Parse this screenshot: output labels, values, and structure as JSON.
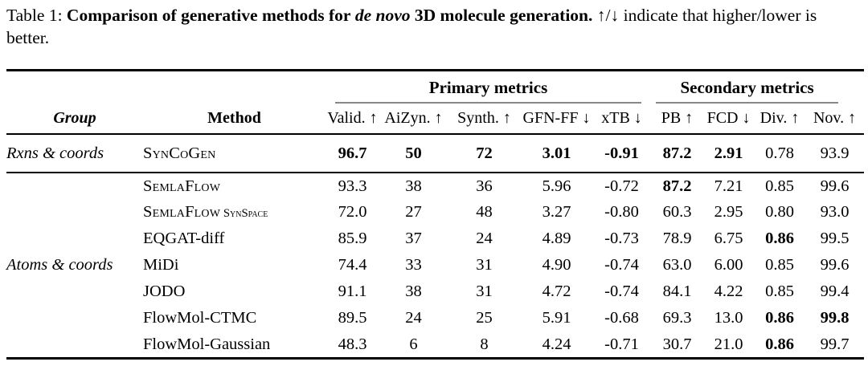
{
  "caption": {
    "prefix": "Table 1:",
    "bold_1": "Comparison of generative methods for",
    "italic": "de novo",
    "bold_2": "3D molecule generation.",
    "rest": "↑/↓ indicate that higher/lower is better."
  },
  "table": {
    "column_groups": [
      {
        "label": "Primary metrics",
        "span": 5
      },
      {
        "label": "Secondary metrics",
        "span": 4
      }
    ],
    "columns": [
      "Group",
      "Method",
      "Valid. ↑",
      "AiZyn. ↑",
      "Synth. ↑",
      "GFN-FF ↓",
      "xTB ↓",
      "PB ↑",
      "FCD ↓",
      "Div. ↑",
      "Nov. ↑"
    ],
    "rule_color": "#888888",
    "sections": [
      {
        "group": "Rxns & coords",
        "rows": [
          {
            "method": "SynCoGen",
            "smallcaps": true,
            "suffix": "",
            "values": [
              "96.7",
              "50",
              "72",
              "3.01",
              "-0.91",
              "87.2",
              "2.91",
              "0.78",
              "93.9"
            ],
            "bold": [
              true,
              true,
              true,
              true,
              true,
              true,
              true,
              false,
              false
            ]
          }
        ]
      },
      {
        "group": "Atoms & coords",
        "rows": [
          {
            "method": "SemlaFlow",
            "smallcaps": true,
            "suffix": "",
            "values": [
              "93.3",
              "38",
              "36",
              "5.96",
              "-0.72",
              "87.2",
              "7.21",
              "0.85",
              "99.6"
            ],
            "bold": [
              false,
              false,
              false,
              false,
              false,
              true,
              false,
              false,
              false
            ]
          },
          {
            "method": "SemlaFlow",
            "smallcaps": true,
            "suffix": "SynSpace",
            "values": [
              "72.0",
              "27",
              "48",
              "3.27",
              "-0.80",
              "60.3",
              "2.95",
              "0.80",
              "93.0"
            ],
            "bold": [
              false,
              false,
              false,
              false,
              false,
              false,
              false,
              false,
              false
            ]
          },
          {
            "method": "EQGAT-diff",
            "smallcaps": false,
            "suffix": "",
            "values": [
              "85.9",
              "37",
              "24",
              "4.89",
              "-0.73",
              "78.9",
              "6.75",
              "0.86",
              "99.5"
            ],
            "bold": [
              false,
              false,
              false,
              false,
              false,
              false,
              false,
              true,
              false
            ]
          },
          {
            "method": "MiDi",
            "smallcaps": false,
            "suffix": "",
            "values": [
              "74.4",
              "33",
              "31",
              "4.90",
              "-0.74",
              "63.0",
              "6.00",
              "0.85",
              "99.6"
            ],
            "bold": [
              false,
              false,
              false,
              false,
              false,
              false,
              false,
              false,
              false
            ]
          },
          {
            "method": "JODO",
            "smallcaps": false,
            "suffix": "",
            "values": [
              "91.1",
              "38",
              "31",
              "4.72",
              "-0.74",
              "84.1",
              "4.22",
              "0.85",
              "99.4"
            ],
            "bold": [
              false,
              false,
              false,
              false,
              false,
              false,
              false,
              false,
              false
            ]
          },
          {
            "method": "FlowMol-CTMC",
            "smallcaps": false,
            "suffix": "",
            "values": [
              "89.5",
              "24",
              "25",
              "5.91",
              "-0.68",
              "69.3",
              "13.0",
              "0.86",
              "99.8"
            ],
            "bold": [
              false,
              false,
              false,
              false,
              false,
              false,
              false,
              true,
              true
            ]
          },
          {
            "method": "FlowMol-Gaussian",
            "smallcaps": false,
            "suffix": "",
            "values": [
              "48.3",
              "6",
              "8",
              "4.24",
              "-0.71",
              "30.7",
              "21.0",
              "0.86",
              "99.7"
            ],
            "bold": [
              false,
              false,
              false,
              false,
              false,
              false,
              false,
              true,
              false
            ]
          }
        ]
      }
    ]
  }
}
